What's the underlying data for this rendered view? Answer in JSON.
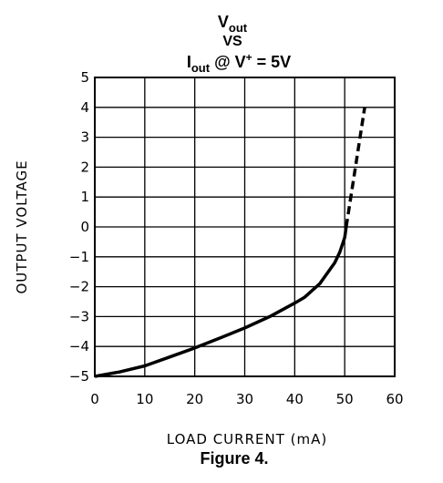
{
  "chart_data": {
    "type": "line",
    "title": {
      "line1_main": "V",
      "line1_sub": "out",
      "line2": "VS",
      "line3_main": "I",
      "line3_sub": "out",
      "line3_mid": " @ V",
      "line3_sup": "+",
      "line3_end": " = 5V"
    },
    "xlabel": "LOAD CURRENT (mA)",
    "ylabel": "OUTPUT VOLTAGE",
    "caption": "Figure 4.",
    "xlim": [
      0,
      60
    ],
    "ylim": [
      -5,
      5
    ],
    "x_ticks": [
      "0",
      "10",
      "20",
      "30",
      "40",
      "50",
      "60"
    ],
    "y_ticks": [
      "5",
      "4",
      "3",
      "2",
      "1",
      "0",
      "−1",
      "−2",
      "−3",
      "−4",
      "−5"
    ],
    "x_tick_values": [
      0,
      10,
      20,
      30,
      40,
      50,
      60
    ],
    "y_tick_values": [
      5,
      4,
      3,
      2,
      1,
      0,
      -1,
      -2,
      -3,
      -4,
      -5
    ],
    "grid": true,
    "series": [
      {
        "style": "solid",
        "x": [
          0,
          5,
          10,
          15,
          20,
          25,
          30,
          35,
          40,
          42,
          45,
          48,
          49,
          50,
          50.3
        ],
        "y": [
          -5.0,
          -4.85,
          -4.65,
          -4.35,
          -4.05,
          -3.72,
          -3.38,
          -3.0,
          -2.55,
          -2.35,
          -1.9,
          -1.2,
          -0.85,
          -0.35,
          0.0
        ]
      },
      {
        "style": "dashed",
        "x": [
          50.3,
          51.5,
          52.8,
          54
        ],
        "y": [
          0.0,
          1.3,
          2.7,
          4.0
        ]
      }
    ]
  }
}
